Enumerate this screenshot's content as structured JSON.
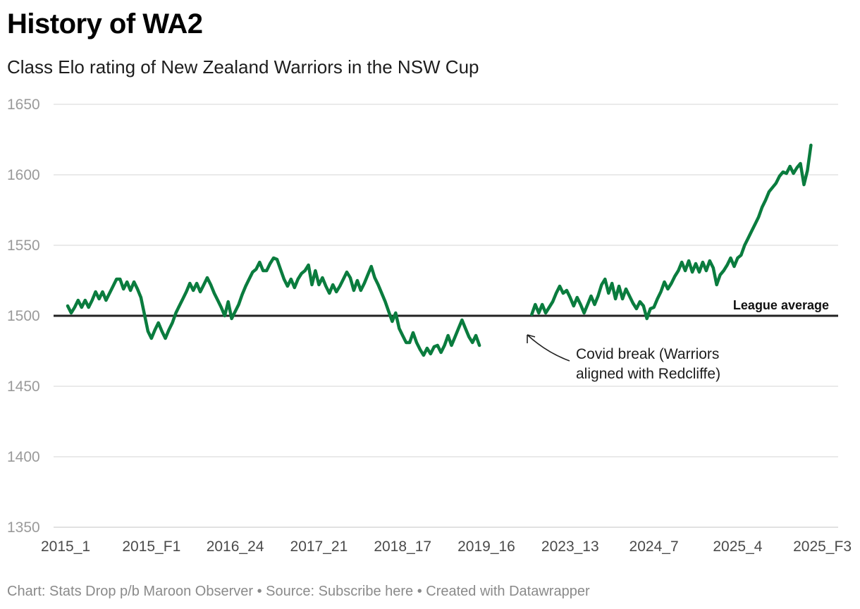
{
  "title": "History of WA2",
  "subtitle": "Class Elo rating of New Zealand Warriors in the NSW Cup",
  "footer": "Chart: Stats Drop p/b Maroon Observer • Source: Subscribe here • Created with Datawrapper",
  "colors": {
    "line": "#0a7c3e",
    "grid": "#dddddd",
    "reference": "#222222",
    "axis_text": "#9a9a9a"
  },
  "chart_data": {
    "type": "line",
    "title": "History of WA2",
    "subtitle": "Class Elo rating of New Zealand Warriors in the NSW Cup",
    "xlabel": "",
    "ylabel": "",
    "ylim": [
      1350,
      1650
    ],
    "yticks": [
      1350,
      1400,
      1450,
      1500,
      1550,
      1600,
      1650
    ],
    "xtick_labels": [
      "2015_1",
      "2015_F1",
      "2016_24",
      "2017_21",
      "2018_17",
      "2019_16",
      "2023_13",
      "2024_7",
      "2025_4",
      "2025_F3"
    ],
    "grid": true,
    "reference_line": {
      "value": 1500,
      "label": "League average"
    },
    "annotation": {
      "line1": "Covid break (Warriors",
      "line2": "aligned with Redcliffe)"
    },
    "series": [
      {
        "name": "WA2",
        "note": "x = game index (tick labels every 24 games: index 0, 24, 48, ... 216); gap between segments = Covid break",
        "segments": [
          {
            "start_index": 0,
            "values": [
              1507,
              1502,
              1506,
              1511,
              1506,
              1511,
              1506,
              1511,
              1517,
              1512,
              1517,
              1511,
              1516,
              1521,
              1526,
              1526,
              1519,
              1524,
              1518,
              1524,
              1519,
              1513,
              1501,
              1489,
              1484,
              1490,
              1495,
              1489,
              1484,
              1490,
              1495,
              1502,
              1507,
              1512,
              1517,
              1523,
              1518,
              1523,
              1517,
              1522,
              1527,
              1522,
              1516,
              1511,
              1506,
              1500,
              1510,
              1498,
              1503,
              1508,
              1515,
              1521,
              1526,
              1531,
              1533,
              1538,
              1532,
              1532,
              1537,
              1541,
              1540,
              1533,
              1526,
              1521,
              1526,
              1520,
              1526,
              1530,
              1532,
              1536,
              1522,
              1532,
              1522,
              1527,
              1521,
              1516,
              1522,
              1517,
              1521,
              1526,
              1531,
              1527,
              1518,
              1525,
              1518,
              1523,
              1529,
              1535,
              1527,
              1522,
              1516,
              1510,
              1503,
              1496,
              1502,
              1491,
              1486,
              1481,
              1481,
              1488,
              1481,
              1476,
              1472,
              1477,
              1473,
              1478,
              1479,
              1474,
              1479,
              1486,
              1479,
              1485,
              1491,
              1497,
              1491,
              1485,
              1481,
              1486,
              1479
            ]
          },
          {
            "start_index": 133,
            "values": [
              1501,
              1508,
              1502,
              1508,
              1502,
              1506,
              1510,
              1516,
              1521,
              1516,
              1518,
              1513,
              1507,
              1513,
              1508,
              1502,
              1508,
              1514,
              1508,
              1514,
              1522,
              1526,
              1516,
              1523,
              1512,
              1521,
              1512,
              1519,
              1514,
              1509,
              1505,
              1510,
              1507,
              1498,
              1505,
              1506,
              1512,
              1517,
              1524,
              1519,
              1523,
              1528,
              1532,
              1538,
              1532,
              1539,
              1531,
              1537,
              1531,
              1538,
              1532,
              1539,
              1534,
              1522,
              1529,
              1532,
              1536,
              1541,
              1535,
              1541,
              1543,
              1550,
              1555,
              1560,
              1565,
              1570,
              1577,
              1582,
              1588,
              1591,
              1594,
              1599,
              1602,
              1601,
              1606,
              1601,
              1605,
              1608,
              1593,
              1603,
              1621
            ]
          }
        ]
      }
    ]
  }
}
